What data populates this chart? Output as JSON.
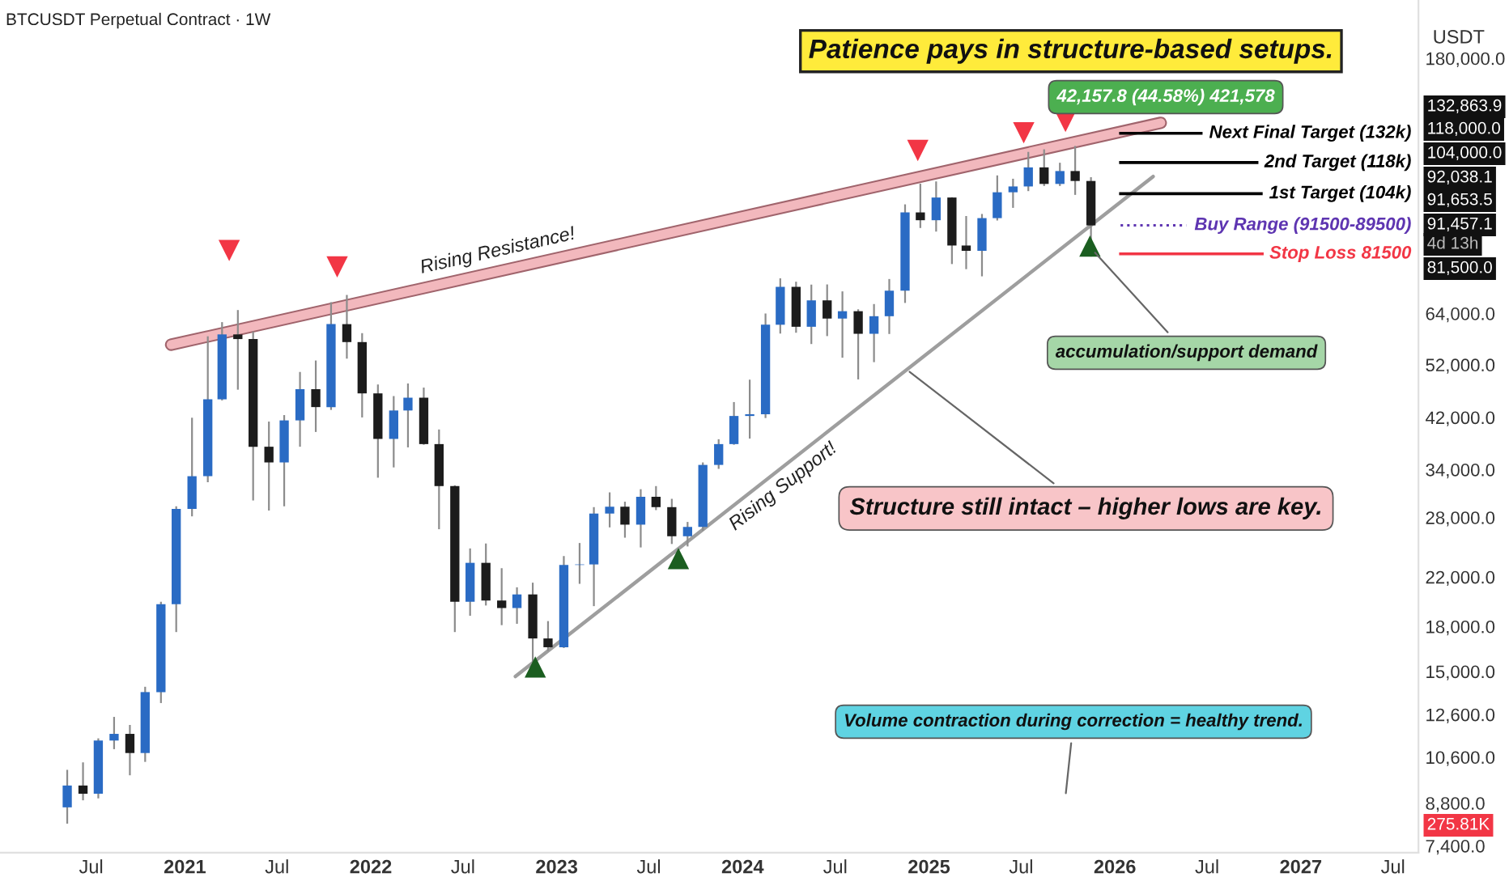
{
  "chart_data": {
    "type": "candlestick",
    "title": "BTCUSDT Perpetual Contract · 1W",
    "subtitle": "Patience pays in structure-based setups.",
    "ylabel": "USDT",
    "log": true,
    "xlim": [
      "2020-01-04",
      "2027-08-20"
    ],
    "xticks": [
      {
        "value": "2020-07-01",
        "label": "Jul"
      },
      {
        "value": "2021-01-01",
        "label": "2021"
      },
      {
        "value": "2021-07-01",
        "label": "Jul"
      },
      {
        "value": "2022-01-01",
        "label": "2022"
      },
      {
        "value": "2022-07-01",
        "label": "Jul"
      },
      {
        "value": "2023-01-01",
        "label": "2023"
      },
      {
        "value": "2023-07-01",
        "label": "Jul"
      },
      {
        "value": "2024-01-01",
        "label": "2024"
      },
      {
        "value": "2024-07-01",
        "label": "Jul"
      },
      {
        "value": "2025-01-01",
        "label": "2025"
      },
      {
        "value": "2025-07-01",
        "label": "Jul"
      },
      {
        "value": "2026-01-01",
        "label": "2026"
      },
      {
        "value": "2026-07-01",
        "label": "Jul"
      },
      {
        "value": "2027-01-01",
        "label": "2027"
      },
      {
        "value": "2027-07-01",
        "label": "Jul"
      }
    ],
    "ylim": [
      7200,
      228000
    ],
    "yticks": [
      {
        "value": 180000,
        "label": "180,000.0"
      },
      {
        "value": 64000,
        "label": "64,000.0"
      },
      {
        "value": 52000,
        "label": "52,000.0"
      },
      {
        "value": 42000,
        "label": "42,000.0"
      },
      {
        "value": 34000,
        "label": "34,000.0"
      },
      {
        "value": 28000,
        "label": "28,000.0"
      },
      {
        "value": 22000,
        "label": "22,000.0"
      },
      {
        "value": 18000,
        "label": "18,000.0"
      },
      {
        "value": 15000,
        "label": "15,000.0"
      },
      {
        "value": 12600,
        "label": "12,600.0"
      },
      {
        "value": 10600,
        "label": "10,600.0"
      },
      {
        "value": 8800,
        "label": "8,800.0"
      },
      {
        "value": 7400,
        "label": "7,400.0"
      }
    ],
    "grid": false,
    "x": [
      "2020-05-15",
      "2020-06-15",
      "2020-07-15",
      "2020-08-15",
      "2020-09-15",
      "2020-10-15",
      "2020-11-15",
      "2020-12-15",
      "2021-01-15",
      "2021-02-15",
      "2021-03-15",
      "2021-04-15",
      "2021-05-15",
      "2021-06-15",
      "2021-07-15",
      "2021-08-15",
      "2021-09-15",
      "2021-10-15",
      "2021-11-15",
      "2021-12-15",
      "2022-01-15",
      "2022-02-15",
      "2022-03-15",
      "2022-04-15",
      "2022-05-15",
      "2022-06-15",
      "2022-07-15",
      "2022-08-15",
      "2022-09-15",
      "2022-10-15",
      "2022-11-15",
      "2022-12-15",
      "2023-01-15",
      "2023-02-15",
      "2023-03-15",
      "2023-04-15",
      "2023-05-15",
      "2023-06-15",
      "2023-07-15",
      "2023-08-15",
      "2023-09-15",
      "2023-10-15",
      "2023-11-15",
      "2023-12-15",
      "2024-01-15",
      "2024-02-15",
      "2024-03-15",
      "2024-04-15",
      "2024-05-15",
      "2024-06-15",
      "2024-07-15",
      "2024-08-15",
      "2024-09-15",
      "2024-10-15",
      "2024-11-15",
      "2024-12-15",
      "2025-01-15",
      "2025-02-15",
      "2025-03-15",
      "2025-04-15",
      "2025-05-15",
      "2025-06-15",
      "2025-07-15",
      "2025-08-15",
      "2025-09-15",
      "2025-10-15",
      "2025-11-15"
    ],
    "ohlc": [
      [
        8650,
        10070,
        8100,
        9450
      ],
      [
        9450,
        10380,
        8900,
        9140
      ],
      [
        9140,
        11440,
        8970,
        11340
      ],
      [
        11340,
        12480,
        10950,
        11650
      ],
      [
        11650,
        12080,
        9850,
        10780
      ],
      [
        10780,
        14100,
        10400,
        13800
      ],
      [
        13800,
        19900,
        13200,
        19700
      ],
      [
        19700,
        29300,
        17600,
        28990
      ],
      [
        28990,
        41950,
        28130,
        33100
      ],
      [
        33100,
        58350,
        32300,
        45200
      ],
      [
        45200,
        61800,
        45000,
        58800
      ],
      [
        58800,
        64900,
        47000,
        57700
      ],
      [
        57700,
        59500,
        30000,
        37300
      ],
      [
        37300,
        41300,
        28800,
        35000
      ],
      [
        35000,
        42400,
        29300,
        41500
      ],
      [
        41500,
        50500,
        37300,
        47100
      ],
      [
        47100,
        52900,
        39600,
        43800
      ],
      [
        43800,
        67000,
        43300,
        61300
      ],
      [
        61300,
        69000,
        53300,
        57000
      ],
      [
        57000,
        59100,
        42000,
        46300
      ],
      [
        46300,
        48000,
        32900,
        38500
      ],
      [
        38500,
        45800,
        34300,
        43200
      ],
      [
        43200,
        48200,
        37200,
        45500
      ],
      [
        45500,
        47400,
        37600,
        37700
      ],
      [
        37700,
        40000,
        26700,
        31800
      ],
      [
        31800,
        31900,
        17600,
        19900
      ],
      [
        19900,
        24700,
        18800,
        23300
      ],
      [
        23300,
        25200,
        19600,
        20000
      ],
      [
        20000,
        22800,
        18100,
        19400
      ],
      [
        19400,
        21100,
        18200,
        20500
      ],
      [
        20500,
        21500,
        15500,
        17150
      ],
      [
        17150,
        18400,
        16300,
        16550
      ],
      [
        16550,
        23950,
        16500,
        23100
      ],
      [
        23100,
        25250,
        21400,
        23150
      ],
      [
        23150,
        29200,
        19550,
        28450
      ],
      [
        28450,
        31000,
        26900,
        29250
      ],
      [
        29250,
        29850,
        25800,
        27200
      ],
      [
        27200,
        31400,
        24800,
        30450
      ],
      [
        30450,
        31800,
        28850,
        29200
      ],
      [
        29200,
        30200,
        25150,
        25950
      ],
      [
        25950,
        27500,
        24900,
        26950
      ],
      [
        26950,
        35000,
        26550,
        34650
      ],
      [
        34650,
        38450,
        34100,
        37700
      ],
      [
        37700,
        44700,
        37600,
        42250
      ],
      [
        42250,
        48950,
        38550,
        42550
      ],
      [
        42550,
        64000,
        41900,
        61150
      ],
      [
        61150,
        73800,
        59000,
        71300
      ],
      [
        71300,
        72800,
        59200,
        60650
      ],
      [
        60650,
        71950,
        56550,
        67500
      ],
      [
        67500,
        72000,
        58400,
        62700
      ],
      [
        62700,
        70000,
        53500,
        64600
      ],
      [
        64600,
        65100,
        49000,
        58950
      ],
      [
        58950,
        66500,
        52550,
        63300
      ],
      [
        63300,
        73600,
        58900,
        70200
      ],
      [
        70200,
        99600,
        66800,
        96400
      ],
      [
        96400,
        108300,
        90500,
        93400
      ],
      [
        93400,
        109300,
        89200,
        102400
      ],
      [
        102400,
        102500,
        78200,
        84300
      ],
      [
        84300,
        95000,
        76600,
        82500
      ],
      [
        82500,
        95800,
        74400,
        94200
      ],
      [
        94200,
        112000,
        93300,
        104600
      ],
      [
        104600,
        110500,
        98200,
        107100
      ],
      [
        107100,
        123200,
        105100,
        115700
      ],
      [
        115700,
        124500,
        107300,
        108200
      ],
      [
        108200,
        117900,
        107300,
        114000
      ],
      [
        114000,
        126200,
        103500,
        109500
      ],
      [
        109500,
        111200,
        80600,
        91457.1
      ]
    ],
    "colors": [
      "#2a6bc4",
      "#1c1c1c",
      "#2a6bc4",
      "#2a6bc4",
      "#1c1c1c",
      "#2a6bc4",
      "#2a6bc4",
      "#2a6bc4",
      "#2a6bc4",
      "#2a6bc4",
      "#2a6bc4",
      "#1c1c1c",
      "#1c1c1c",
      "#1c1c1c",
      "#2a6bc4",
      "#2a6bc4",
      "#1c1c1c",
      "#2a6bc4",
      "#1c1c1c",
      "#1c1c1c",
      "#1c1c1c",
      "#2a6bc4",
      "#2a6bc4",
      "#1c1c1c",
      "#1c1c1c",
      "#1c1c1c",
      "#2a6bc4",
      "#1c1c1c",
      "#1c1c1c",
      "#2a6bc4",
      "#1c1c1c",
      "#1c1c1c",
      "#2a6bc4",
      "#2a6bc4",
      "#2a6bc4",
      "#2a6bc4",
      "#1c1c1c",
      "#2a6bc4",
      "#1c1c1c",
      "#1c1c1c",
      "#2a6bc4",
      "#2a6bc4",
      "#2a6bc4",
      "#2a6bc4",
      "#2a6bc4",
      "#2a6bc4",
      "#2a6bc4",
      "#1c1c1c",
      "#2a6bc4",
      "#1c1c1c",
      "#2a6bc4",
      "#1c1c1c",
      "#2a6bc4",
      "#2a6bc4",
      "#2a6bc4",
      "#1c1c1c",
      "#2a6bc4",
      "#1c1c1c",
      "#1c1c1c",
      "#2a6bc4",
      "#2a6bc4",
      "#2a6bc4",
      "#2a6bc4",
      "#1c1c1c",
      "#2a6bc4",
      "#1c1c1c",
      "#1c1c1c"
    ],
    "series": [
      {
        "type": "line",
        "name": "Rising Resistance!",
        "color": "#f2b8bd",
        "x": [
          "2020-12-05",
          "2026-04-01"
        ],
        "values": [
          56400,
          138600
        ]
      },
      {
        "type": "line",
        "name": "Rising Support!",
        "color": "#9e9e9e",
        "x": [
          "2022-10-12",
          "2026-03-17"
        ],
        "values": [
          14700,
          111500
        ]
      },
      {
        "type": "scatter",
        "marker": "triangle-down",
        "color": "#f23645",
        "x": [
          "2021-03-29",
          "2021-10-27",
          "2024-12-10",
          "2025-07-06",
          "2025-09-26"
        ],
        "values": [
          82600,
          77300,
          123900,
          133100,
          139400
        ]
      },
      {
        "type": "scatter",
        "marker": "triangle",
        "color": "#1b5e20",
        "x": [
          "2022-11-20",
          "2023-08-28",
          "2025-11-13"
        ],
        "values": [
          15280,
          23700,
          84100
        ]
      }
    ],
    "ref_lines": [
      {
        "axis": "y",
        "value": 132863.9,
        "label": "Next Final Target (132k)",
        "color": "#000000"
      },
      {
        "axis": "y",
        "value": 118000,
        "label": "2nd Target (118k)",
        "color": "#000000"
      },
      {
        "axis": "y",
        "value": 104000,
        "label": "1st Target (104k)",
        "color": "#000000"
      },
      {
        "axis": "y",
        "value": 91457.1,
        "label": "Buy Range (91500-89500)",
        "color": "#5e35b1",
        "line_style": "dotted"
      },
      {
        "axis": "y",
        "value": 81500,
        "label": "Stop Loss 81500",
        "color": "#f23645"
      }
    ],
    "annotations": [
      "42,157.8 (44.58%) 421,578",
      "Volume contraction during correction = healthy trend.",
      "132,863.9",
      "118,000.0",
      "104,000.0",
      "92,038.1",
      "91,653.5",
      "91,457.1",
      "4d 13h",
      "81,500.0",
      "275.81K",
      {
        "text": "accumulation/support demand",
        "x": "2025-11-17",
        "y": 83000
      },
      {
        "text": "Structure still intact – higher lows are key.",
        "x": "2024-11-17",
        "y": 51100
      }
    ]
  }
}
